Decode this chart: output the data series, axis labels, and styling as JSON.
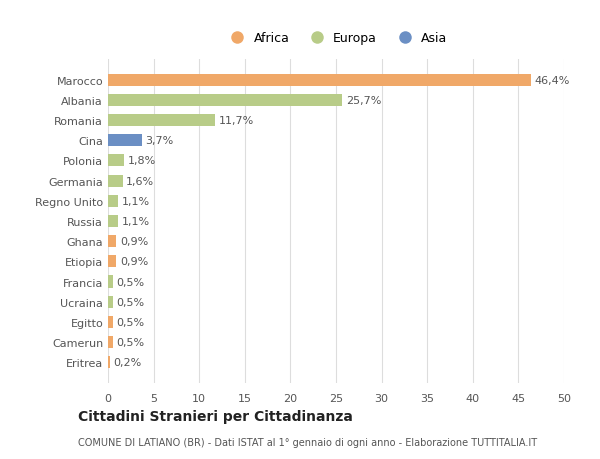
{
  "categories": [
    "Eritrea",
    "Camerun",
    "Egitto",
    "Ucraina",
    "Francia",
    "Etiopia",
    "Ghana",
    "Russia",
    "Regno Unito",
    "Germania",
    "Polonia",
    "Cina",
    "Romania",
    "Albania",
    "Marocco"
  ],
  "values": [
    0.2,
    0.5,
    0.5,
    0.5,
    0.5,
    0.9,
    0.9,
    1.1,
    1.1,
    1.6,
    1.8,
    3.7,
    11.7,
    25.7,
    46.4
  ],
  "colors": [
    "#f0a868",
    "#f0a868",
    "#f0a868",
    "#b8cc88",
    "#b8cc88",
    "#f0a868",
    "#f0a868",
    "#b8cc88",
    "#b8cc88",
    "#b8cc88",
    "#b8cc88",
    "#6b8fc4",
    "#b8cc88",
    "#b8cc88",
    "#f0a868"
  ],
  "labels": [
    "0,2%",
    "0,5%",
    "0,5%",
    "0,5%",
    "0,5%",
    "0,9%",
    "0,9%",
    "1,1%",
    "1,1%",
    "1,6%",
    "1,8%",
    "3,7%",
    "11,7%",
    "25,7%",
    "46,4%"
  ],
  "legend": [
    {
      "label": "Africa",
      "color": "#f0a868"
    },
    {
      "label": "Europa",
      "color": "#b8cc88"
    },
    {
      "label": "Asia",
      "color": "#6b8fc4"
    }
  ],
  "xlim": [
    0,
    50
  ],
  "xticks": [
    0,
    5,
    10,
    15,
    20,
    25,
    30,
    35,
    40,
    45,
    50
  ],
  "title": "Cittadini Stranieri per Cittadinanza",
  "subtitle": "COMUNE DI LATIANO (BR) - Dati ISTAT al 1° gennaio di ogni anno - Elaborazione TUTTITALIA.IT",
  "bg_color": "#ffffff",
  "grid_color": "#dddddd",
  "bar_height": 0.6,
  "label_fontsize": 8,
  "ytick_fontsize": 8,
  "xtick_fontsize": 8
}
